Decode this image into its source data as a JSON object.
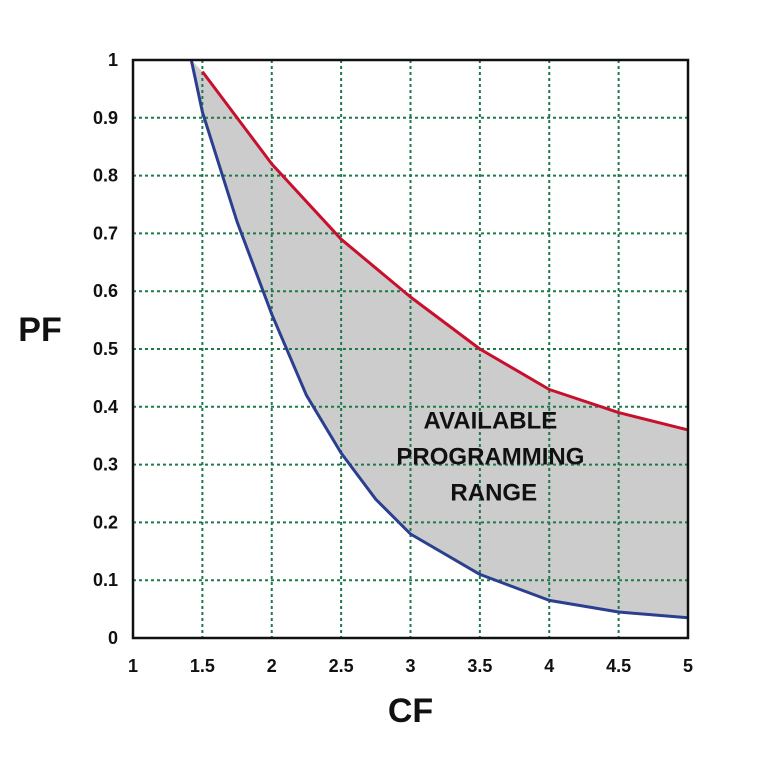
{
  "chart_data": {
    "type": "area",
    "xlabel": "CF",
    "ylabel": "PF",
    "xlim": [
      1,
      5
    ],
    "ylim": [
      0,
      1
    ],
    "x_ticks": [
      "1",
      "1.5",
      "2",
      "2.5",
      "3",
      "3.5",
      "4",
      "4.5",
      "5"
    ],
    "y_ticks": [
      "0",
      "0.1",
      "0.2",
      "0.3",
      "0.4",
      "0.5",
      "0.6",
      "0.7",
      "0.8",
      "0.9",
      "1"
    ],
    "grid": true,
    "series": [
      {
        "color": "#c8102e",
        "x": [
          1.5,
          2.0,
          2.5,
          3.0,
          3.5,
          4.0,
          4.5,
          5.0
        ],
        "y": [
          0.98,
          0.82,
          0.69,
          0.59,
          0.5,
          0.43,
          0.39,
          0.36
        ]
      },
      {
        "color": "#2a3f8f",
        "x": [
          1.42,
          1.5,
          1.75,
          2.0,
          2.25,
          2.5,
          2.75,
          3.0,
          3.5,
          4.0,
          4.5,
          5.0
        ],
        "y": [
          1.0,
          0.91,
          0.72,
          0.56,
          0.42,
          0.32,
          0.24,
          0.18,
          0.11,
          0.065,
          0.045,
          0.035
        ]
      }
    ],
    "fill_color": "#cccccc",
    "annotation": {
      "lines": [
        "AVAILABLE",
        "PROGRAMMING",
        "RANGE"
      ],
      "x": 3.6,
      "y": 0.3
    }
  }
}
